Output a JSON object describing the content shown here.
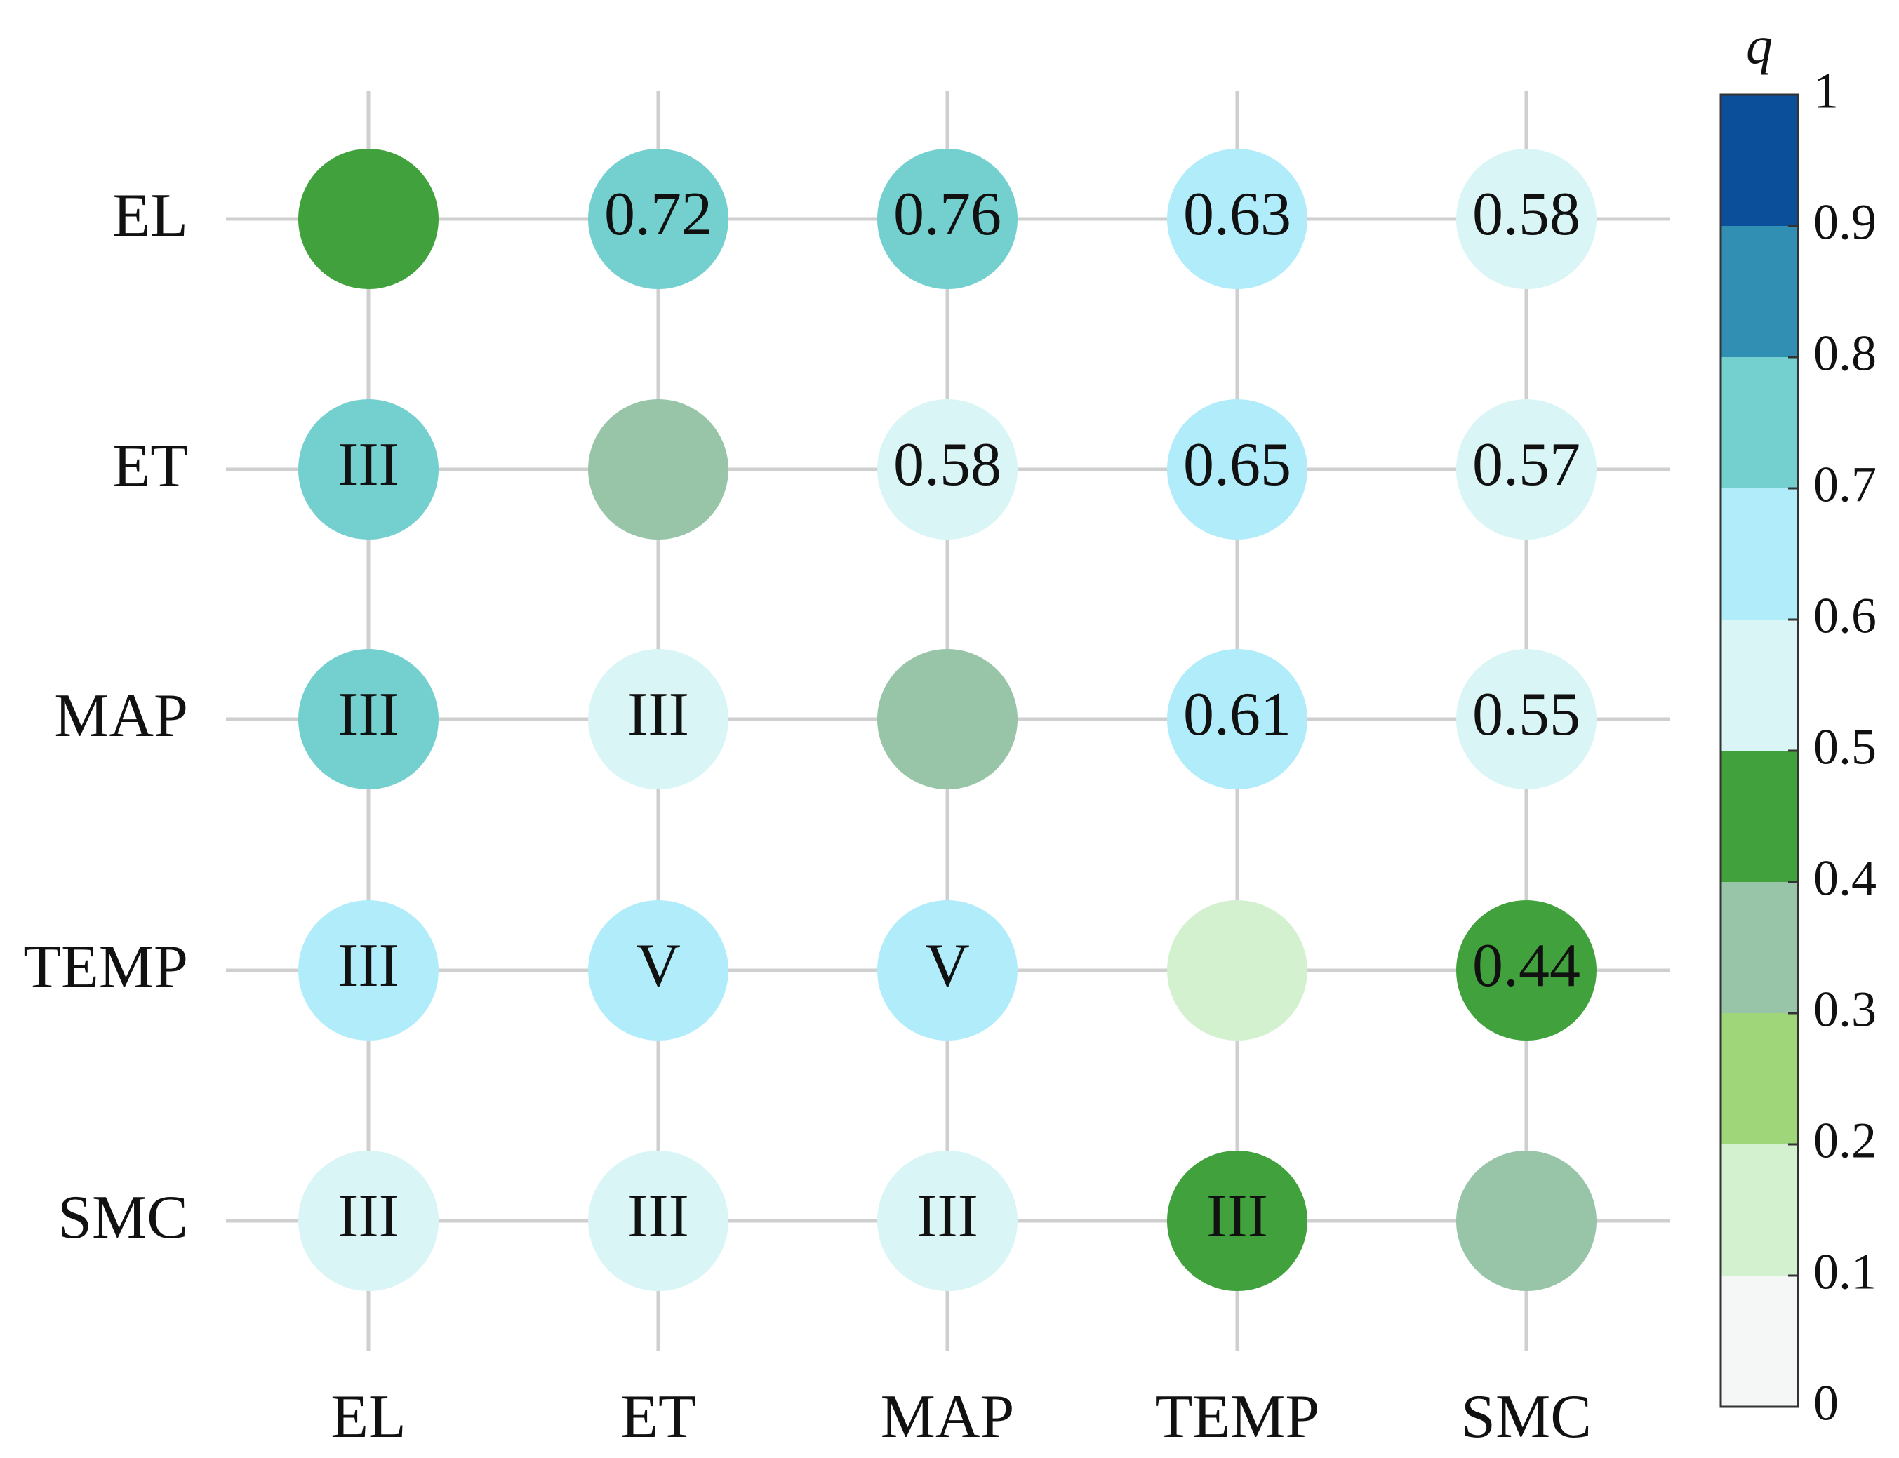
{
  "chart_data": {
    "type": "heatmap",
    "variables": [
      "EL",
      "ET",
      "MAP",
      "TEMP",
      "SMC"
    ],
    "cells": [
      {
        "row": "EL",
        "col": "EL",
        "value": 0.45,
        "label": ""
      },
      {
        "row": "EL",
        "col": "ET",
        "value": 0.72,
        "label": "0.72"
      },
      {
        "row": "EL",
        "col": "MAP",
        "value": 0.76,
        "label": "0.76"
      },
      {
        "row": "EL",
        "col": "TEMP",
        "value": 0.63,
        "label": "0.63"
      },
      {
        "row": "EL",
        "col": "SMC",
        "value": 0.58,
        "label": "0.58"
      },
      {
        "row": "ET",
        "col": "EL",
        "value": 0.72,
        "label": "III"
      },
      {
        "row": "ET",
        "col": "ET",
        "value": 0.35,
        "label": ""
      },
      {
        "row": "ET",
        "col": "MAP",
        "value": 0.58,
        "label": "0.58"
      },
      {
        "row": "ET",
        "col": "TEMP",
        "value": 0.65,
        "label": "0.65"
      },
      {
        "row": "ET",
        "col": "SMC",
        "value": 0.57,
        "label": "0.57"
      },
      {
        "row": "MAP",
        "col": "EL",
        "value": 0.76,
        "label": "III"
      },
      {
        "row": "MAP",
        "col": "ET",
        "value": 0.58,
        "label": "III"
      },
      {
        "row": "MAP",
        "col": "MAP",
        "value": 0.35,
        "label": ""
      },
      {
        "row": "MAP",
        "col": "TEMP",
        "value": 0.61,
        "label": "0.61"
      },
      {
        "row": "MAP",
        "col": "SMC",
        "value": 0.55,
        "label": "0.55"
      },
      {
        "row": "TEMP",
        "col": "EL",
        "value": 0.63,
        "label": "III"
      },
      {
        "row": "TEMP",
        "col": "ET",
        "value": 0.65,
        "label": "V"
      },
      {
        "row": "TEMP",
        "col": "MAP",
        "value": 0.61,
        "label": "V"
      },
      {
        "row": "TEMP",
        "col": "TEMP",
        "value": 0.15,
        "label": ""
      },
      {
        "row": "TEMP",
        "col": "SMC",
        "value": 0.44,
        "label": "0.44"
      },
      {
        "row": "SMC",
        "col": "EL",
        "value": 0.58,
        "label": "III"
      },
      {
        "row": "SMC",
        "col": "ET",
        "value": 0.57,
        "label": "III"
      },
      {
        "row": "SMC",
        "col": "MAP",
        "value": 0.55,
        "label": "III"
      },
      {
        "row": "SMC",
        "col": "TEMP",
        "value": 0.44,
        "label": "III"
      },
      {
        "row": "SMC",
        "col": "SMC",
        "value": 0.35,
        "label": ""
      }
    ],
    "colorbar": {
      "title": "q",
      "ticks": [
        "0",
        "0.1",
        "0.2",
        "0.3",
        "0.4",
        "0.5",
        "0.6",
        "0.7",
        "0.8",
        "0.9",
        "1"
      ],
      "range": [
        0,
        1
      ],
      "bins": [
        {
          "from": 0.0,
          "to": 0.1,
          "color": "#f5f7f6"
        },
        {
          "from": 0.1,
          "to": 0.2,
          "color": "#d3f1cf"
        },
        {
          "from": 0.2,
          "to": 0.3,
          "color": "#9fd67a"
        },
        {
          "from": 0.3,
          "to": 0.4,
          "color": "#98c5a8"
        },
        {
          "from": 0.4,
          "to": 0.5,
          "color": "#41a13d"
        },
        {
          "from": 0.5,
          "to": 0.6,
          "color": "#d9f5f5"
        },
        {
          "from": 0.6,
          "to": 0.7,
          "color": "#b0ecfa"
        },
        {
          "from": 0.7,
          "to": 0.8,
          "color": "#74cfcf"
        },
        {
          "from": 0.8,
          "to": 0.9,
          "color": "#318fb4"
        },
        {
          "from": 0.9,
          "to": 1.0,
          "color": "#0b4f9b"
        }
      ]
    },
    "grid": true,
    "legend_placement": "right"
  }
}
